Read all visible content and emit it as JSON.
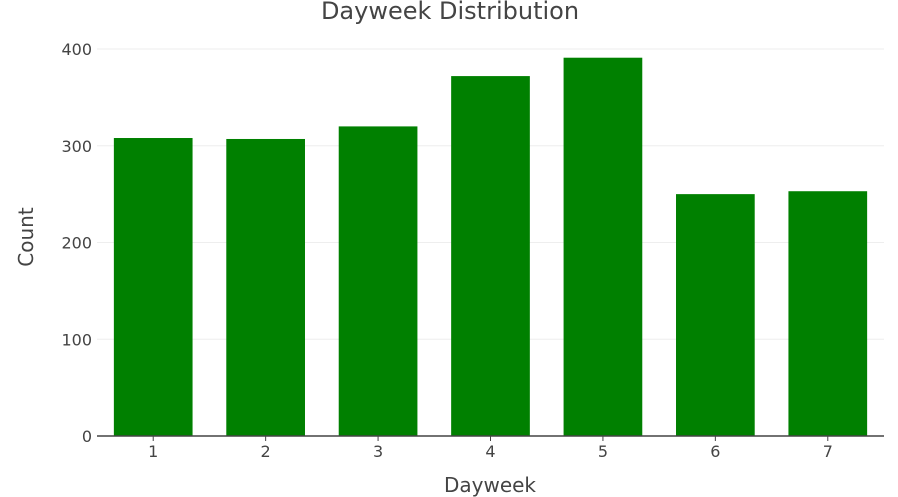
{
  "chart_data": {
    "type": "bar",
    "title": "Dayweek Distribution",
    "xlabel": "Dayweek",
    "ylabel": "Count",
    "categories": [
      "1",
      "2",
      "3",
      "4",
      "5",
      "6",
      "7"
    ],
    "values": [
      308,
      307,
      320,
      372,
      391,
      250,
      253
    ],
    "ylim": [
      0,
      400
    ],
    "yticks": [
      0,
      100,
      200,
      300,
      400
    ],
    "ytick_labels": [
      "0",
      "100",
      "200",
      "300",
      "400"
    ],
    "grid": true,
    "legend": "none",
    "bar_color": "#008000"
  }
}
